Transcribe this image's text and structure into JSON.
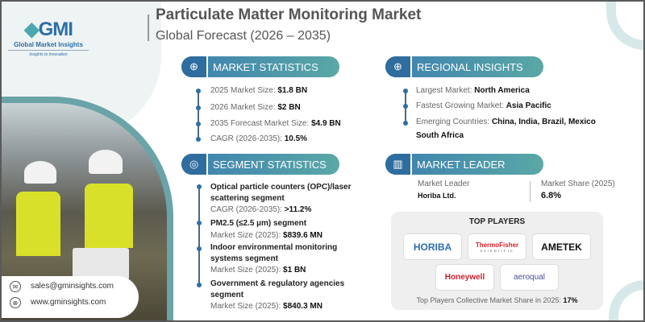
{
  "brand": {
    "logo_text": "GMI",
    "name": "Global Market Insights",
    "tagline": "Insights to Innovation"
  },
  "header": {
    "title": "Particulate Matter Monitoring Market",
    "subtitle": "Global Forecast (2026 – 2035)"
  },
  "market_statistics": {
    "heading": "MARKET STATISTICS",
    "icon": "globe-chart-icon",
    "items": [
      {
        "label": "2025 Market Size: ",
        "value": "$1.8 BN"
      },
      {
        "label": "2026 Market Size: ",
        "value": "$2 BN"
      },
      {
        "label": "2035 Forecast Market Size: ",
        "value": "$4.9 BN"
      },
      {
        "label": "CAGR (2026-2035): ",
        "value": "10.5%"
      }
    ]
  },
  "segment_statistics": {
    "heading": "SEGMENT STATISTICS",
    "icon": "target-chart-icon",
    "items": [
      {
        "name_l1": "Optical particle counters (OPC)/laser",
        "name_l2": "scattering segment",
        "label": "CAGR (2026-2035): ",
        "value": ">11.2%"
      },
      {
        "name_l1": "PM2.5 (≤2.5 µm) segment",
        "label": "Market Size (2025): ",
        "value": "$839.6 MN"
      },
      {
        "name_l1": "Indoor environmental monitoring",
        "name_l2": "systems segment",
        "label": "Market Size (2025): ",
        "value": "$1 BN"
      },
      {
        "name_l1": "Government & regulatory agencies",
        "name_l2": "segment",
        "label": "Market Size (2025): ",
        "value": "$840.3 MN"
      }
    ]
  },
  "regional_insights": {
    "heading": "REGIONAL INSIGHTS",
    "icon": "globe-icon",
    "items": [
      {
        "label": "Largest Market: ",
        "value": "North America"
      },
      {
        "label": "Fastest Growing Market: ",
        "value": "Asia Pacific"
      },
      {
        "label": "Emerging Countries: ",
        "value": "China, India, Brazil, Mexico",
        "value_l2": "South Africa"
      }
    ]
  },
  "market_leader": {
    "heading": "MARKET LEADER",
    "icon": "bar-chart-icon",
    "leader_label": "Market Leader",
    "leader": "Horiba Ltd.",
    "share_label": "Market Share (2025)",
    "share": "6.8%"
  },
  "top_players": {
    "heading": "TOP PLAYERS",
    "logos": [
      "HORIBA",
      "ThermoFisher",
      "SCIENTIFIC",
      "AMETEK",
      "Honeywell",
      "aeroqual"
    ],
    "footer_label": "Top Players Collective Market Share in 2025: ",
    "footer_value": "17%"
  },
  "contact": {
    "email": "sales@gminsights.com",
    "website": "www.gminsights.com"
  },
  "colors": {
    "primary": "#2d6fa6",
    "teal": "#5aa8a6",
    "horiba": "#2e6db4",
    "thermo": "#d0202a",
    "honeywell": "#d0202a",
    "aeroqual": "#4a4f9a"
  }
}
